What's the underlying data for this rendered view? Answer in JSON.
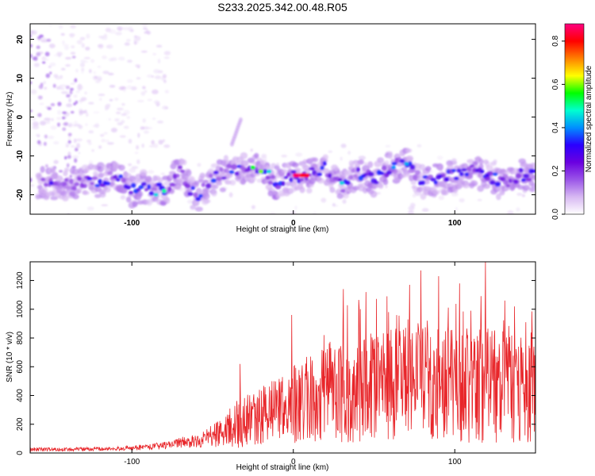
{
  "title": "S233.2025.342.00.48.R05",
  "colors": {
    "snr_line": "#e8262a",
    "axis": "#000000",
    "colormap": [
      "#ffffff",
      "#d7b8f2",
      "#9a55e8",
      "#6a00e0",
      "#2a00ff",
      "#0090ff",
      "#00ffd0",
      "#00ff00",
      "#ffff00",
      "#ff8000",
      "#ff0000",
      "#ff0080"
    ]
  },
  "chart_data": [
    {
      "type": "heatmap",
      "xlabel": "Height of straight line (km)",
      "ylabel": "Frequency (Hz)",
      "xlim": [
        -163,
        150
      ],
      "ylim": [
        -25,
        24
      ],
      "x_ticks": [
        -100,
        0,
        100
      ],
      "y_ticks": [
        -20,
        -10,
        0,
        10,
        20
      ],
      "colorbar": {
        "label": "Normalized spectral amplitude",
        "range": [
          0,
          0.88
        ],
        "ticks": [
          0.0,
          0.2,
          0.4,
          0.6,
          0.8
        ]
      },
      "ridge_frequency_hz": [
        [
          -160,
          -17
        ],
        [
          -140,
          -17.5
        ],
        [
          -120,
          -16.5
        ],
        [
          -110,
          -15
        ],
        [
          -100,
          -19
        ],
        [
          -90,
          -18
        ],
        [
          -80,
          -19
        ],
        [
          -70,
          -14
        ],
        [
          -60,
          -21
        ],
        [
          -50,
          -16
        ],
        [
          -40,
          -14
        ],
        [
          -30,
          -13
        ],
        [
          -20,
          -14
        ],
        [
          -10,
          -17
        ],
        [
          0,
          -15
        ],
        [
          10,
          -15
        ],
        [
          20,
          -13
        ],
        [
          30,
          -18
        ],
        [
          40,
          -14
        ],
        [
          50,
          -16
        ],
        [
          60,
          -13
        ],
        [
          70,
          -12
        ],
        [
          80,
          -17
        ],
        [
          90,
          -16
        ],
        [
          100,
          -15
        ],
        [
          110,
          -14
        ],
        [
          120,
          -15
        ],
        [
          130,
          -17
        ],
        [
          140,
          -15
        ],
        [
          150,
          -15
        ]
      ],
      "peak": {
        "x": 5,
        "y": -15,
        "amplitude": 0.88
      }
    },
    {
      "type": "line",
      "xlabel": "Height of straight line (km)",
      "ylabel": "SNR (10 * v/v)",
      "xlim": [
        -163,
        150
      ],
      "ylim": [
        0,
        1330
      ],
      "x_ticks": [
        -100,
        0,
        100
      ],
      "y_ticks": [
        0,
        200,
        400,
        600,
        800,
        1000,
        1200
      ],
      "series": [
        {
          "envelope_x": [
            -163,
            -140,
            -120,
            -100,
            -80,
            -70,
            -60,
            -50,
            -40,
            -35,
            -30,
            -20,
            -10,
            0,
            10,
            20,
            30,
            40,
            50,
            60,
            70,
            80,
            90,
            100,
            110,
            120,
            130,
            140,
            150
          ],
          "envelope_mean": [
            25,
            25,
            28,
            35,
            50,
            70,
            90,
            120,
            170,
            200,
            220,
            260,
            300,
            330,
            380,
            420,
            460,
            460,
            470,
            470,
            470,
            480,
            480,
            470,
            470,
            470,
            470,
            460,
            450
          ],
          "envelope_range": [
            20,
            20,
            20,
            25,
            40,
            60,
            80,
            120,
            200,
            260,
            280,
            300,
            350,
            420,
            480,
            520,
            600,
            600,
            600,
            600,
            620,
            620,
            620,
            620,
            620,
            620,
            620,
            600,
            600
          ],
          "spikes": [
            [
              -33,
              620
            ],
            [
              -1,
              960
            ],
            [
              19,
              820
            ],
            [
              31,
              1140
            ],
            [
              45,
              1120
            ],
            [
              58,
              1090
            ],
            [
              72,
              1170
            ],
            [
              79,
              1270
            ],
            [
              90,
              1230
            ],
            [
              103,
              1180
            ],
            [
              119,
              1330
            ],
            [
              131,
              1060
            ],
            [
              137,
              1020
            ],
            [
              144,
              910
            ]
          ]
        }
      ]
    }
  ]
}
